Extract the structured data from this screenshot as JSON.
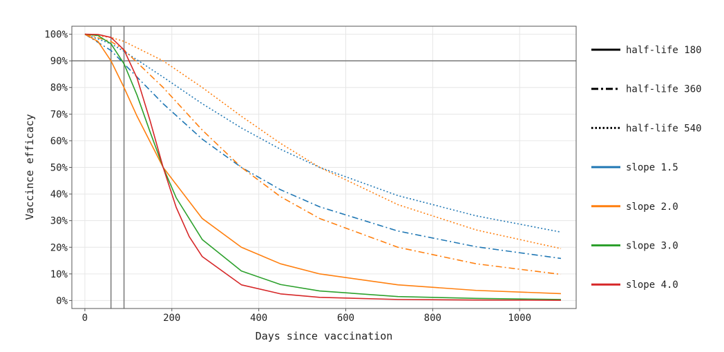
{
  "chart_data": {
    "type": "line",
    "xlabel": "Days since vaccination",
    "ylabel": "Vaccince efficacy",
    "xlim": [
      -30,
      1130
    ],
    "ylim": [
      -0.03,
      1.03
    ],
    "x_ticks": [
      0,
      200,
      400,
      600,
      800,
      1000
    ],
    "x_tick_labels": [
      "0",
      "200",
      "400",
      "600",
      "800",
      "1000"
    ],
    "y_ticks": [
      0,
      0.1,
      0.2,
      0.3,
      0.4,
      0.5,
      0.6,
      0.7,
      0.8,
      0.9,
      1.0
    ],
    "y_tick_labels": [
      "0%",
      "10%",
      "20%",
      "30%",
      "40%",
      "50%",
      "60%",
      "70%",
      "80%",
      "90%",
      "100%"
    ],
    "grid": true,
    "legend_position": "right",
    "reference_lines": {
      "horizontal": [
        0.9
      ],
      "vertical": [
        60,
        90
      ]
    },
    "legend": [
      {
        "label": "half-life 180",
        "color": "#000000",
        "dash": "solid"
      },
      {
        "label": "half-life 360",
        "color": "#000000",
        "dash": "dashdot"
      },
      {
        "label": "half-life 540",
        "color": "#000000",
        "dash": "dotted"
      },
      {
        "label": "slope 1.5",
        "color": "#1f77b4",
        "dash": "solid"
      },
      {
        "label": "slope 2.0",
        "color": "#ff7f0e",
        "dash": "solid"
      },
      {
        "label": "slope 3.0",
        "color": "#2ca02c",
        "dash": "solid"
      },
      {
        "label": "slope 4.0",
        "color": "#d62728",
        "dash": "solid"
      }
    ],
    "series": [
      {
        "slope": 1.5,
        "half_life": 360,
        "color": "#1f77b4",
        "dash": "dashdot",
        "x": [
          0,
          60,
          90,
          180,
          270,
          360,
          450,
          540,
          720,
          900,
          1095
        ],
        "y": [
          1.0,
          0.939,
          0.889,
          0.739,
          0.606,
          0.5,
          0.416,
          0.352,
          0.261,
          0.202,
          0.158
        ]
      },
      {
        "slope": 1.5,
        "half_life": 540,
        "color": "#1f77b4",
        "dash": "dotted",
        "x": [
          0,
          60,
          90,
          180,
          270,
          360,
          450,
          540,
          720,
          900,
          1095
        ],
        "y": [
          1.0,
          0.964,
          0.936,
          0.839,
          0.739,
          0.648,
          0.568,
          0.5,
          0.394,
          0.318,
          0.257
        ]
      },
      {
        "slope": 2.0,
        "half_life": 180,
        "color": "#ff7f0e",
        "dash": "solid",
        "x": [
          0,
          30,
          60,
          90,
          120,
          180,
          270,
          360,
          450,
          540,
          720,
          900,
          1095
        ],
        "y": [
          1.0,
          0.973,
          0.9,
          0.8,
          0.692,
          0.5,
          0.308,
          0.2,
          0.138,
          0.1,
          0.059,
          0.038,
          0.026
        ]
      },
      {
        "slope": 2.0,
        "half_life": 360,
        "color": "#ff7f0e",
        "dash": "dashdot",
        "x": [
          0,
          60,
          90,
          180,
          270,
          360,
          450,
          540,
          720,
          900,
          1095
        ],
        "y": [
          1.0,
          0.973,
          0.941,
          0.8,
          0.64,
          0.5,
          0.39,
          0.308,
          0.2,
          0.138,
          0.098
        ]
      },
      {
        "slope": 2.0,
        "half_life": 540,
        "color": "#ff7f0e",
        "dash": "dotted",
        "x": [
          0,
          60,
          90,
          180,
          270,
          360,
          450,
          540,
          720,
          900,
          1095
        ],
        "y": [
          1.0,
          0.988,
          0.973,
          0.9,
          0.8,
          0.692,
          0.59,
          0.5,
          0.36,
          0.265,
          0.195
        ]
      },
      {
        "slope": 3.0,
        "half_life": 180,
        "color": "#2ca02c",
        "dash": "solid",
        "x": [
          0,
          30,
          60,
          90,
          120,
          150,
          180,
          210,
          270,
          360,
          450,
          540,
          720,
          900,
          1095
        ],
        "y": [
          1.0,
          0.995,
          0.964,
          0.889,
          0.771,
          0.633,
          0.5,
          0.386,
          0.229,
          0.111,
          0.06,
          0.036,
          0.015,
          0.008,
          0.004
        ]
      },
      {
        "slope": 4.0,
        "half_life": 180,
        "color": "#d62728",
        "dash": "solid",
        "x": [
          0,
          30,
          60,
          90,
          120,
          150,
          180,
          210,
          240,
          270,
          360,
          450,
          540,
          720,
          900,
          1095
        ],
        "y": [
          1.0,
          0.999,
          0.988,
          0.941,
          0.835,
          0.675,
          0.5,
          0.35,
          0.24,
          0.165,
          0.059,
          0.025,
          0.012,
          0.004,
          0.002,
          0.001
        ]
      }
    ]
  }
}
